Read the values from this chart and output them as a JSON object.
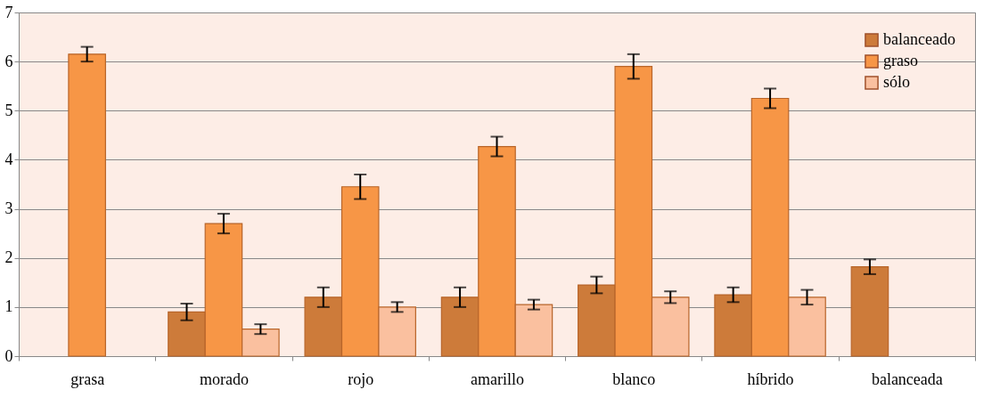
{
  "chart_data": {
    "type": "bar",
    "categories": [
      "grasa",
      "morado",
      "rojo",
      "amarillo",
      "blanco",
      "híbrido",
      "balanceada"
    ],
    "series": [
      {
        "name": "balanceado",
        "color": "#cd7b3a",
        "values": [
          null,
          0.9,
          1.2,
          1.2,
          1.45,
          1.25,
          1.82
        ],
        "errors": [
          null,
          0.17,
          0.2,
          0.2,
          0.17,
          0.15,
          0.15
        ]
      },
      {
        "name": "graso",
        "color": "#f79646",
        "values": [
          6.15,
          2.7,
          3.45,
          4.27,
          5.9,
          5.25,
          null
        ],
        "errors": [
          0.15,
          0.2,
          0.25,
          0.2,
          0.25,
          0.2,
          null
        ]
      },
      {
        "name": "sólo",
        "color": "#fac09f",
        "values": [
          null,
          0.55,
          1.0,
          1.05,
          1.2,
          1.2,
          null
        ],
        "errors": [
          null,
          0.1,
          0.1,
          0.1,
          0.12,
          0.15,
          null
        ]
      }
    ],
    "ylim": [
      0,
      7
    ],
    "yticks": [
      0,
      1,
      2,
      3,
      4,
      5,
      6,
      7
    ],
    "grid": "y",
    "legend": "top right"
  }
}
